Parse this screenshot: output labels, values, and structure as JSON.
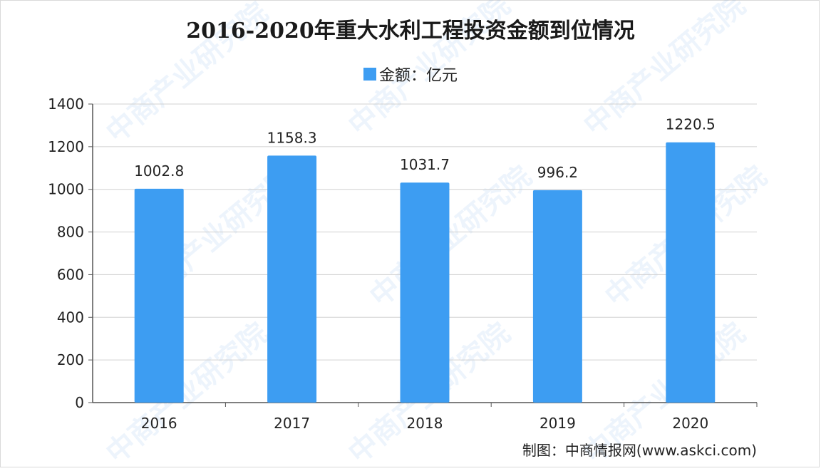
{
  "chart_data": {
    "type": "bar",
    "title": "2016-2020年重大水利工程投资金额到位情况",
    "categories": [
      "2016",
      "2017",
      "2018",
      "2019",
      "2020"
    ],
    "series": [
      {
        "name": "金额：亿元",
        "values": [
          1002.8,
          1158.3,
          1031.7,
          996.2,
          1220.5
        ],
        "color": "#3d9df2"
      }
    ],
    "data_labels": [
      "1002.8",
      "1158.3",
      "1031.7",
      "996.2",
      "1220.5"
    ],
    "ylim": [
      0,
      1400
    ],
    "yticks": [
      0,
      200,
      400,
      600,
      800,
      1000,
      1200,
      1400
    ],
    "grid": true,
    "legend": "top-center"
  },
  "credit": "制图：中商情报网(www.askci.com)",
  "watermark": "中商产业研究院"
}
